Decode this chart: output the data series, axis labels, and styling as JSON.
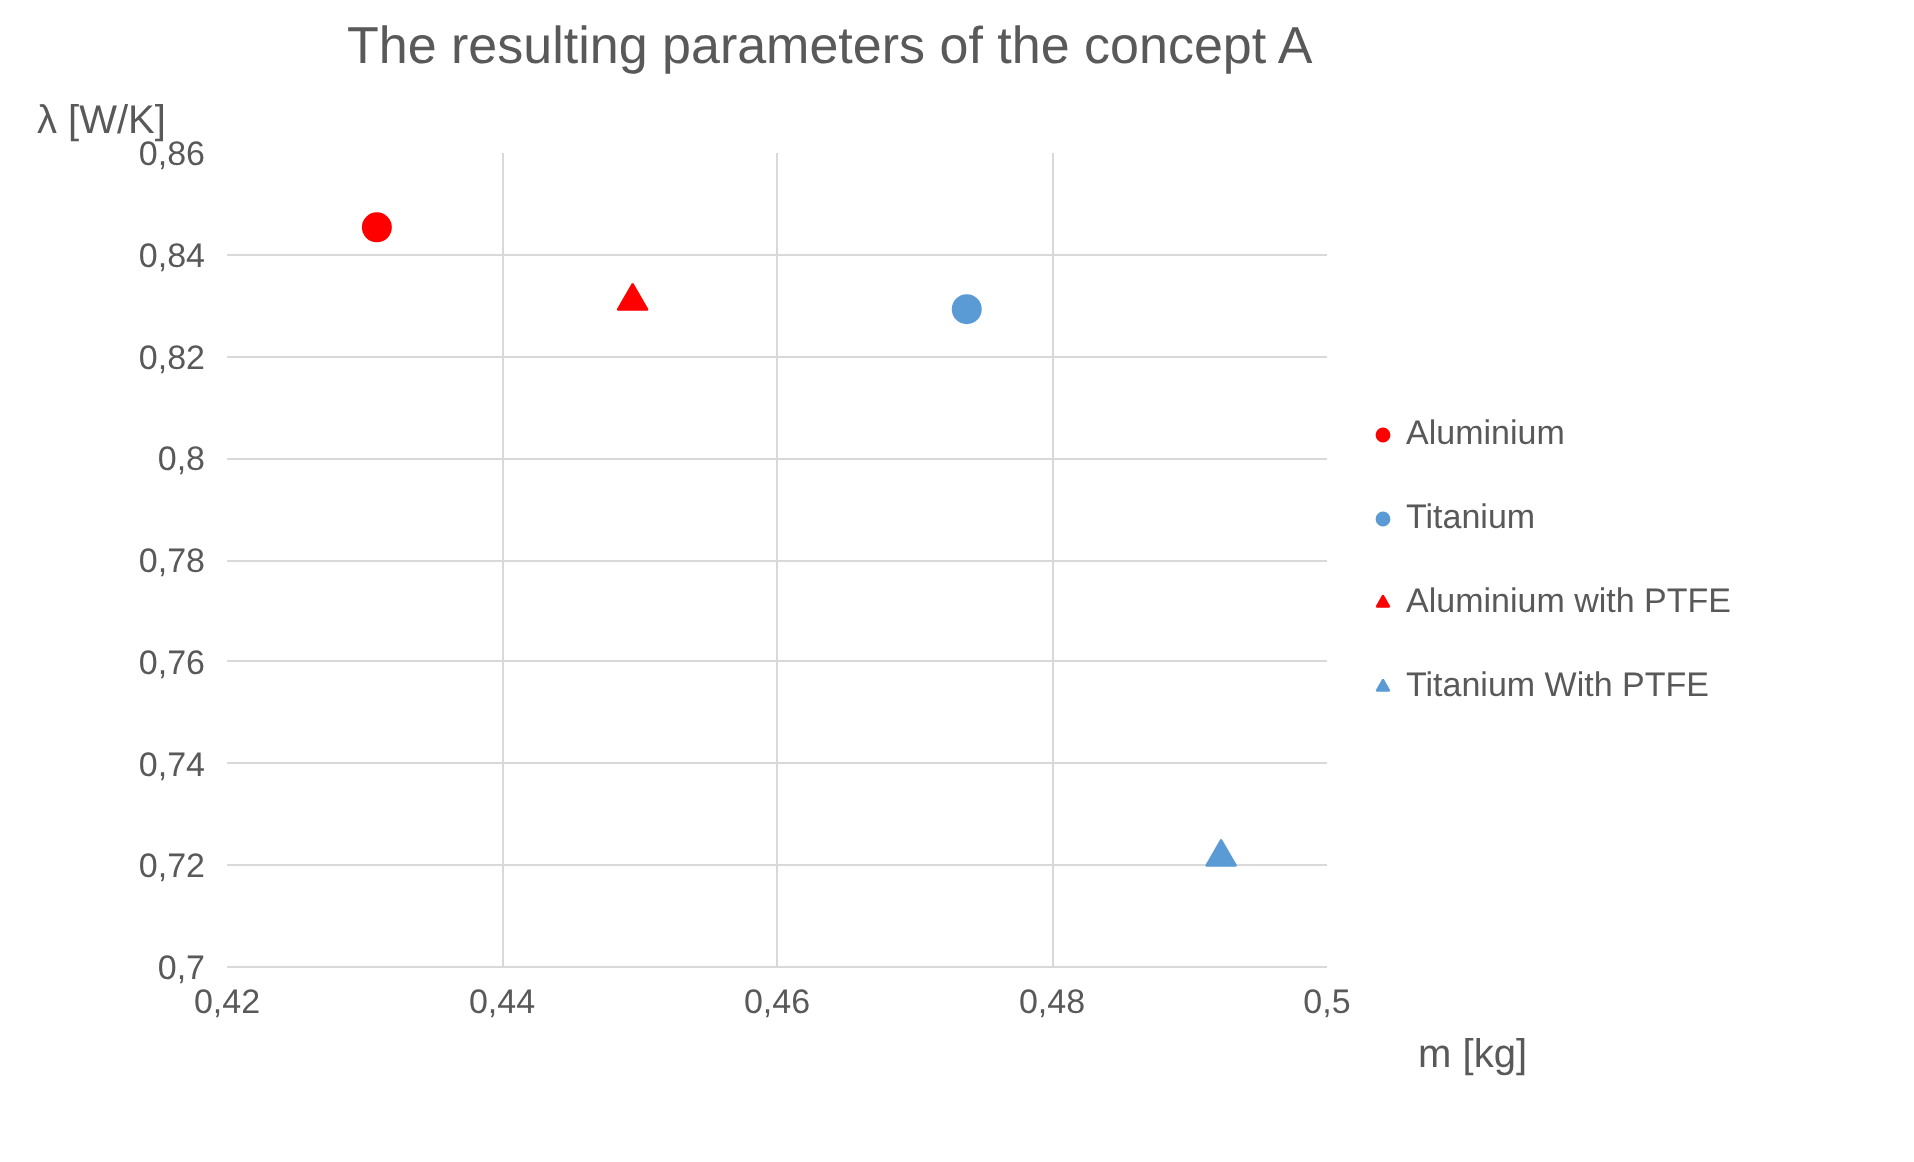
{
  "chart_data": {
    "type": "scatter",
    "title": "The resulting parameters of the concept A",
    "xlabel": "m [kg]",
    "ylabel": "λ [W/K]",
    "series": [
      {
        "name": "Aluminium",
        "color": "#ff0000",
        "marker": "circle",
        "x": [
          0.4309
        ],
        "values": [
          0.8454
        ]
      },
      {
        "name": "Titanium",
        "color": "#5b9bd5",
        "marker": "circle",
        "x": [
          0.4738
        ],
        "values": [
          0.8293
        ]
      },
      {
        "name": "Aluminium with PTFE",
        "color": "#ff0000",
        "marker": "triangle",
        "x": [
          0.4495
        ],
        "values": [
          0.8309
        ]
      },
      {
        "name": "Titanium With PTFE",
        "color": "#5b9bd5",
        "marker": "triangle",
        "x": [
          0.4923
        ],
        "values": [
          0.7216
        ]
      }
    ],
    "xlim": [
      0.42,
      0.5
    ],
    "ylim": [
      0.7,
      0.86
    ],
    "xticks": [
      {
        "value": 0.42,
        "label": "0,42"
      },
      {
        "value": 0.44,
        "label": "0,44"
      },
      {
        "value": 0.46,
        "label": "0,46"
      },
      {
        "value": 0.48,
        "label": "0,48"
      },
      {
        "value": 0.5,
        "label": "0,5"
      }
    ],
    "yticks": [
      {
        "value": 0.7,
        "label": "0,7"
      },
      {
        "value": 0.72,
        "label": "0,72"
      },
      {
        "value": 0.74,
        "label": "0,74"
      },
      {
        "value": 0.76,
        "label": "0,76"
      },
      {
        "value": 0.78,
        "label": "0,78"
      },
      {
        "value": 0.8,
        "label": "0,8"
      },
      {
        "value": 0.82,
        "label": "0,82"
      },
      {
        "value": 0.84,
        "label": "0,84"
      },
      {
        "value": 0.86,
        "label": "0,86"
      }
    ],
    "grid": true,
    "legend": "right"
  }
}
